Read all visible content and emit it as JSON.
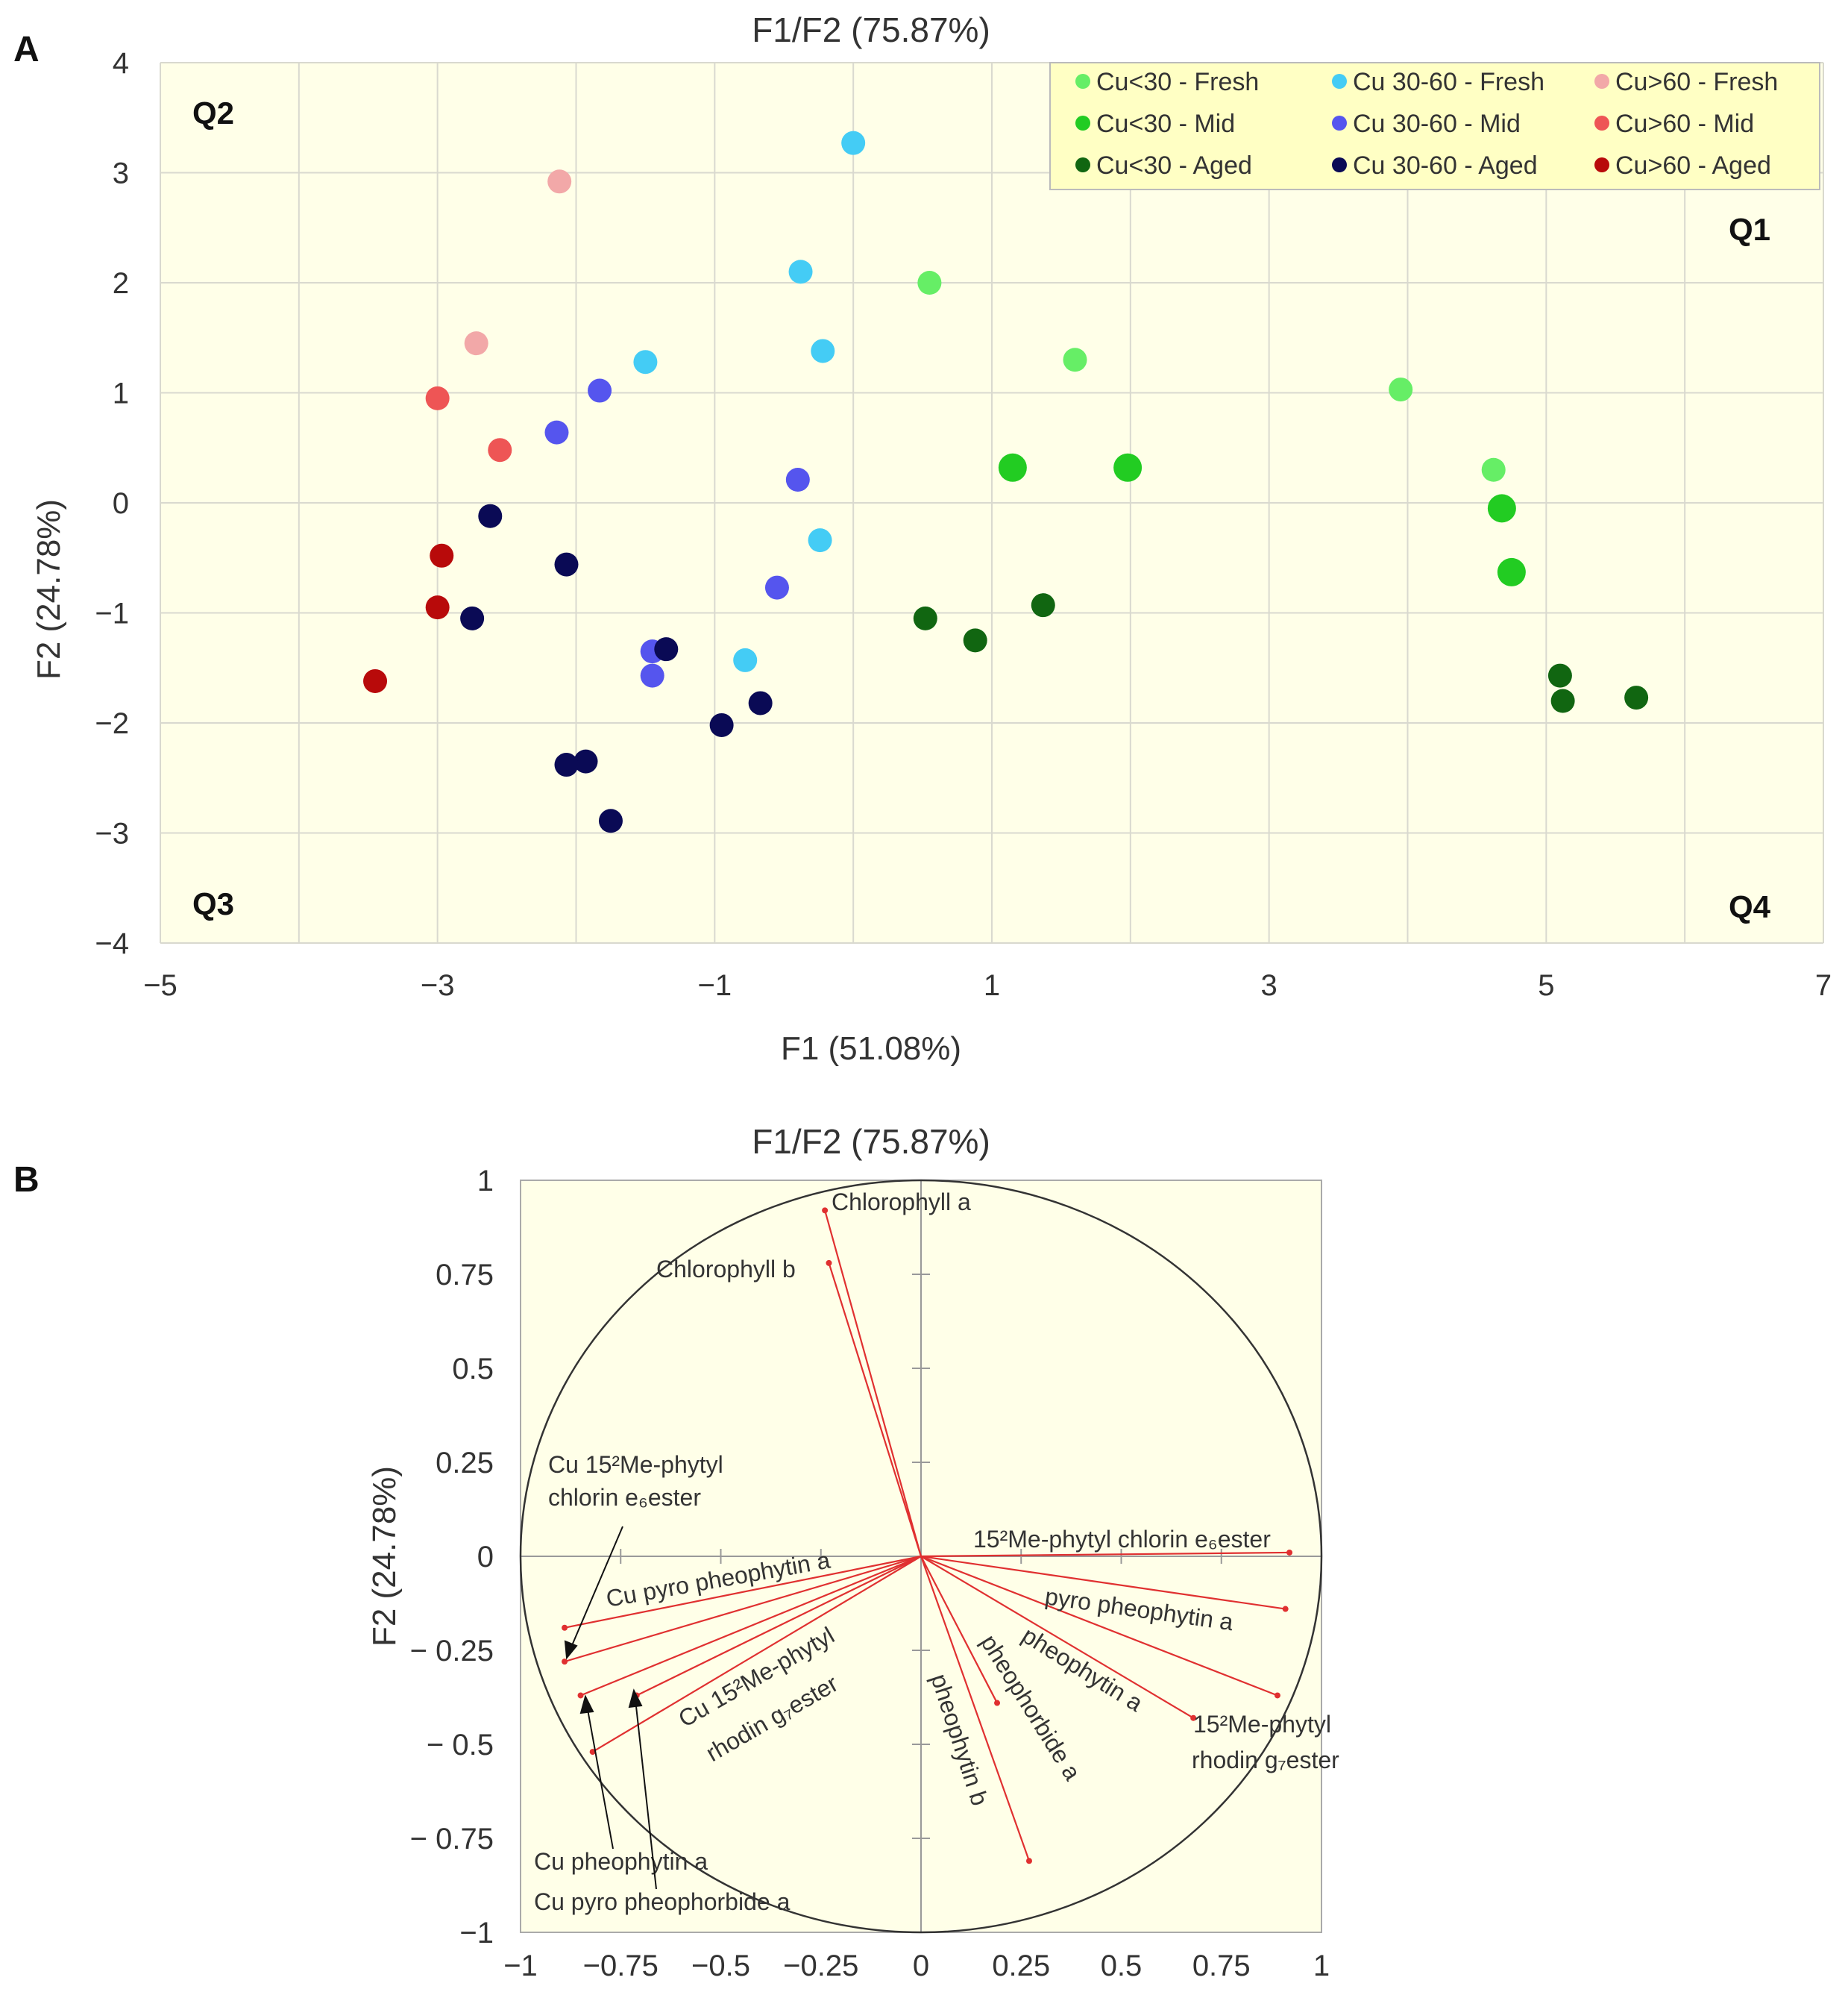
{
  "panelA": {
    "panel_letter": "A",
    "quadrants": {
      "q1": "Q1",
      "q2": "Q2",
      "q3": "Q3",
      "q4": "Q4"
    },
    "colors": {
      "Cu<30 - Fresh": "#66ee66",
      "Cu<30 - Mid": "#22cc22",
      "Cu<30 - Aged": "#116611",
      "Cu 30-60 - Fresh": "#44ccf5",
      "Cu 30-60 - Mid": "#5555ee",
      "Cu 30-60 - Aged": "#0a0a55",
      "Cu>60 - Fresh": "#f2a8a8",
      "Cu>60 - Mid": "#ee5555",
      "Cu>60 - Aged": "#b80a0a"
    }
  },
  "panelB": {
    "panel_letter": "B"
  },
  "chart_data": [
    {
      "type": "scatter",
      "title": "F1/F2 (75.87%)",
      "xlabel": "F1 (51.08%)",
      "ylabel": "F2 (24.78%)",
      "xlim": [
        -5,
        7
      ],
      "ylim": [
        -4,
        4
      ],
      "xticks": [
        "−5",
        "−3",
        "−1",
        "1",
        "3",
        "5",
        "7"
      ],
      "yticks": [
        "4",
        "3",
        "2",
        "1",
        "0",
        "−1",
        "−2",
        "−3",
        "−4"
      ],
      "grid": true,
      "legend_position": "top-right",
      "series": [
        {
          "name": "Cu<30 - Fresh",
          "points": [
            [
              0.55,
              2.0
            ],
            [
              1.6,
              1.3
            ],
            [
              3.95,
              1.03
            ],
            [
              4.62,
              0.3
            ]
          ]
        },
        {
          "name": "Cu<30 - Mid",
          "points": [
            [
              1.15,
              0.32
            ],
            [
              1.98,
              0.32
            ],
            [
              4.68,
              -0.05
            ],
            [
              4.75,
              -0.63
            ]
          ]
        },
        {
          "name": "Cu<30 - Aged",
          "points": [
            [
              0.52,
              -1.05
            ],
            [
              0.88,
              -1.25
            ],
            [
              1.37,
              -0.93
            ],
            [
              5.1,
              -1.57
            ],
            [
              5.12,
              -1.8
            ],
            [
              5.65,
              -1.77
            ]
          ]
        },
        {
          "name": "Cu 30-60 - Fresh",
          "points": [
            [
              0.0,
              3.27
            ],
            [
              -0.38,
              2.1
            ],
            [
              -0.22,
              1.38
            ],
            [
              -1.5,
              1.28
            ],
            [
              -0.24,
              -0.34
            ],
            [
              -0.78,
              -1.43
            ]
          ]
        },
        {
          "name": "Cu 30-60 - Mid",
          "points": [
            [
              -1.83,
              1.02
            ],
            [
              -2.14,
              0.64
            ],
            [
              -0.4,
              0.21
            ],
            [
              -0.55,
              -0.77
            ],
            [
              -1.45,
              -1.35
            ],
            [
              -1.45,
              -1.57
            ]
          ]
        },
        {
          "name": "Cu 30-60 - Aged",
          "points": [
            [
              -2.62,
              -0.12
            ],
            [
              -2.07,
              -0.56
            ],
            [
              -2.75,
              -1.05
            ],
            [
              -1.35,
              -1.33
            ],
            [
              -0.67,
              -1.82
            ],
            [
              -0.95,
              -2.02
            ],
            [
              -1.93,
              -2.35
            ],
            [
              -2.07,
              -2.38
            ],
            [
              -1.75,
              -2.89
            ]
          ]
        },
        {
          "name": "Cu>60 - Fresh",
          "points": [
            [
              -2.12,
              2.92
            ],
            [
              -2.72,
              1.45
            ]
          ]
        },
        {
          "name": "Cu>60 - Mid",
          "points": [
            [
              -3.0,
              0.95
            ],
            [
              -2.55,
              0.48
            ]
          ]
        },
        {
          "name": "Cu>60 - Aged",
          "points": [
            [
              -2.97,
              -0.48
            ],
            [
              -3.0,
              -0.95
            ],
            [
              -3.45,
              -1.62
            ]
          ]
        }
      ]
    },
    {
      "type": "scatter",
      "subtype": "correlation circle (loadings)",
      "title": "F1/F2 (75.87%)",
      "xlabel": "",
      "ylabel": "F2 (24.78%)",
      "xlim": [
        -1,
        1
      ],
      "ylim": [
        -1,
        1
      ],
      "xticks": [
        "−1",
        "−0.75",
        "−0.5",
        "−0.25",
        "0",
        "0.25",
        "0.5",
        "0.75",
        "1"
      ],
      "yticks": [
        "1",
        "0.75",
        "0.5",
        "0.25",
        "0",
        "− 0.25",
        "− 0.5",
        "− 0.75",
        "−1"
      ],
      "vectors": [
        {
          "name": "Chlorophyll a",
          "x": -0.24,
          "y": 0.92
        },
        {
          "name": "Chlorophyll b",
          "x": -0.23,
          "y": 0.78
        },
        {
          "name": "15²Me-phytyl chlorin e₆ester",
          "x": 0.92,
          "y": 0.01
        },
        {
          "name": "pyro pheophytin a",
          "x": 0.91,
          "y": -0.14
        },
        {
          "name": "15²Me-phytyl rhodin g₇ester",
          "x": 0.89,
          "y": -0.37
        },
        {
          "name": "pheophytin a",
          "x": 0.68,
          "y": -0.43
        },
        {
          "name": "pheophorbide a",
          "x": 0.19,
          "y": -0.39
        },
        {
          "name": "pheophytin b",
          "x": 0.27,
          "y": -0.81
        },
        {
          "name": "Cu pyro pheophytin a",
          "x": -0.89,
          "y": -0.19
        },
        {
          "name": "Cu 15²Me-phytyl chlorin e₆ester",
          "x": -0.89,
          "y": -0.28
        },
        {
          "name": "Cu pheophytin a",
          "x": -0.85,
          "y": -0.37
        },
        {
          "name": "Cu pyro pheophorbide a",
          "x": -0.71,
          "y": -0.37
        },
        {
          "name": "Cu 15²Me-phytyl rhodin g₇ester",
          "x": -0.82,
          "y": -0.52
        }
      ],
      "labels": {
        "chl_a": "Chlorophyll a",
        "chl_b": "Chlorophyll b",
        "me_chlorin": "15²Me-phytyl chlorin e₆ester",
        "pyro_pheo": "pyro pheophytin a",
        "me_rhodin_1": "15²Me-phytyl",
        "me_rhodin_2": "rhodin g₇ester",
        "pheophytin_a": "pheophytin a",
        "pheophorbide_a": "pheophorbide a",
        "pheophytin_b": "pheophytin b",
        "cu_chlorin_1": "Cu 15²Me-phytyl",
        "cu_chlorin_2": "chlorin e₆ester",
        "cu_pyro_pheo": "Cu pyro pheophytin a",
        "cu_rhodin_1": "Cu 15²Me-phytyl",
        "cu_rhodin_2": "rhodin g₇ester",
        "cu_pheophytin": "Cu pheophytin a",
        "cu_pyro_pheophorbide": "Cu pyro pheophorbide a"
      }
    }
  ]
}
